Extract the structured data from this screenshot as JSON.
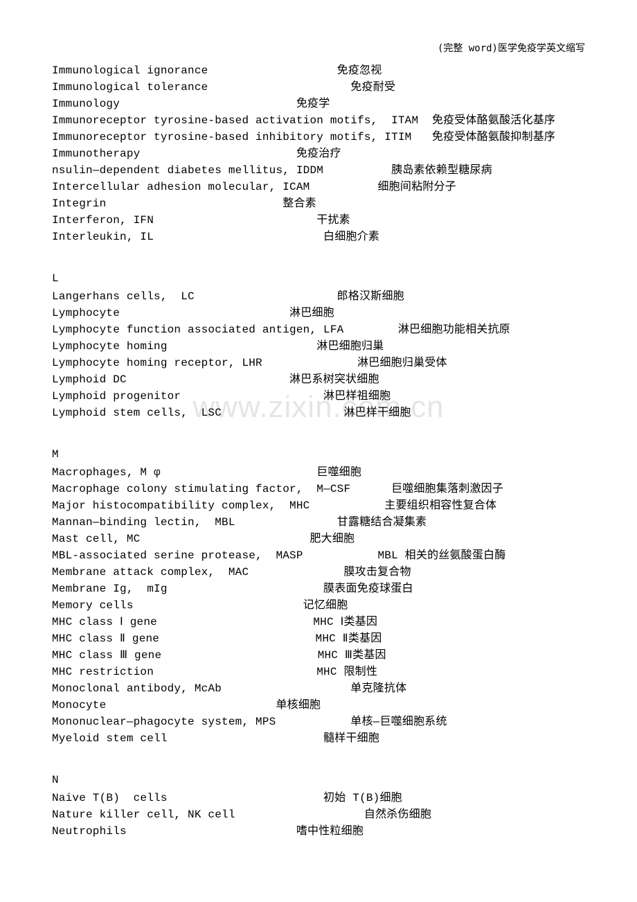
{
  "header": "(完整 word)医学免疫学英文缩写",
  "watermark": "www.zixin.com.cn",
  "sections": [
    {
      "header": "",
      "entries": [
        "Immunological ignorance                   免疫忽视",
        "Immunological tolerance                     免疫耐受",
        "Immunology                          免疫学",
        "Immunoreceptor tyrosine-based activation motifs,  ITAM  免疫受体酪氨酸活化基序",
        "Immunoreceptor tyrosine-based inhibitory motifs, ITIM   免疫受体酪氨酸抑制基序",
        "Immunotherapy                       免疫治疗",
        "nsulin—dependent diabetes mellitus, IDDM          胰岛素依赖型糖尿病",
        "Intercellular adhesion molecular, ICAM          细胞间粘附分子",
        "Integrin                          整合素",
        "Interferon, IFN                        干扰素",
        "Interleukin, IL                         白细胞介素"
      ]
    },
    {
      "header": "L",
      "entries": [
        "Langerhans cells,  LC                     郎格汉斯细胞",
        "Lymphocyte                         淋巴细胞",
        "Lymphocyte function associated antigen, LFA        淋巴细胞功能相关抗原",
        "Lymphocyte homing                      淋巴细胞归巢",
        "Lymphocyte homing receptor, LHR              淋巴细胞归巢受体",
        "Lymphoid DC                        淋巴系树突状细胞",
        "Lymphoid progenitor                     淋巴样祖细胞",
        "Lymphoid stem cells,  LSC                  淋巴样干细胞"
      ]
    },
    {
      "header": "M",
      "entries": [
        "Macrophages, M φ                       巨噬细胞",
        "Macrophage colony stimulating factor,  M—CSF      巨噬细胞集落刺激因子",
        "Major histocompatibility complex,  MHC           主要组织相容性复合体",
        "Mannan—binding lectin,  MBL               甘露糖结合凝集素",
        "Mast cell, MC                         肥大细胞",
        "MBL-associated serine protease,  MASP           MBL 相关的丝氨酸蛋白酶",
        "Membrane attack complex,  MAC              膜攻击复合物",
        "Membrane Ig,  mIg                       膜表面免疫球蛋白",
        "Memory cells                         记忆细胞",
        "MHC class Ⅰ gene                       MHC Ⅰ类基因",
        "MHC class Ⅱ gene                       MHC Ⅱ类基因",
        "MHC class Ⅲ gene                       MHC Ⅲ类基因",
        "MHC restriction                        MHC 限制性",
        "Monoclonal antibody, McAb                   单克隆抗体",
        "Monocyte                         单核细胞",
        "Mononuclear—phagocyte system, MPS           单核—巨噬细胞系统",
        "Myeloid stem cell                       髓样干细胞"
      ]
    },
    {
      "header": "N",
      "entries": [
        "Naive T(B)  cells                       初始 T(B)细胞",
        "Nature killer cell, NK cell                   自然杀伤细胞",
        "Neutrophils                         嗜中性粒细胞"
      ]
    }
  ]
}
